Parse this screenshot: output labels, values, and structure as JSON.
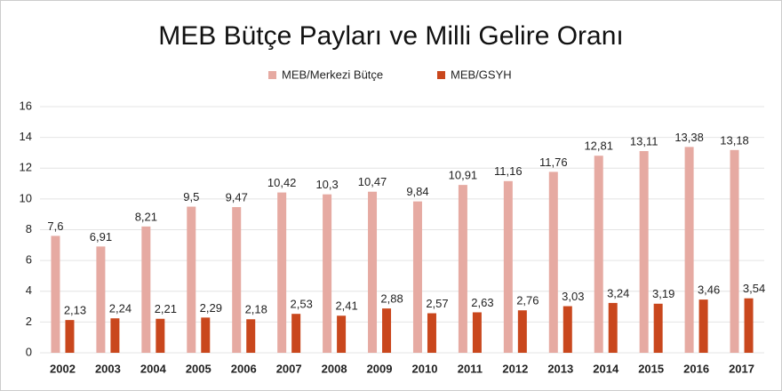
{
  "chart_data": {
    "type": "bar",
    "title": "MEB Bütçe Payları ve Milli Gelire Oranı",
    "categories": [
      "2002",
      "2003",
      "2004",
      "2005",
      "2006",
      "2007",
      "2008",
      "2009",
      "2010",
      "2011",
      "2012",
      "2013",
      "2014",
      "2015",
      "2016",
      "2017"
    ],
    "series": [
      {
        "name": "MEB/Merkezi Bütçe",
        "color": "#e6aaa2",
        "values": [
          7.6,
          6.91,
          8.21,
          9.5,
          9.47,
          10.42,
          10.3,
          10.47,
          9.84,
          10.91,
          11.16,
          11.76,
          12.81,
          13.11,
          13.38,
          13.18
        ],
        "value_labels": [
          "7,6",
          "6,91",
          "8,21",
          "9,5",
          "9,47",
          "10,42",
          "10,3",
          "10,47",
          "9,84",
          "10,91",
          "11,16",
          "11,76",
          "12,81",
          "13,11",
          "13,38",
          "13,18"
        ]
      },
      {
        "name": "MEB/GSYH",
        "color": "#c9471d",
        "values": [
          2.13,
          2.24,
          2.21,
          2.29,
          2.18,
          2.53,
          2.41,
          2.88,
          2.57,
          2.63,
          2.76,
          3.03,
          3.24,
          3.19,
          3.46,
          3.54
        ],
        "value_labels": [
          "2,13",
          "2,24",
          "2,21",
          "2,29",
          "2,18",
          "2,53",
          "2,41",
          "2,88",
          "2,57",
          "2,63",
          "2,76",
          "3,03",
          "3,24",
          "3,19",
          "3,46",
          "3,54"
        ]
      }
    ],
    "ylim": [
      0,
      16
    ],
    "yticks": [
      0,
      2,
      4,
      6,
      8,
      10,
      12,
      14,
      16
    ],
    "grid": true,
    "legend": "top"
  }
}
